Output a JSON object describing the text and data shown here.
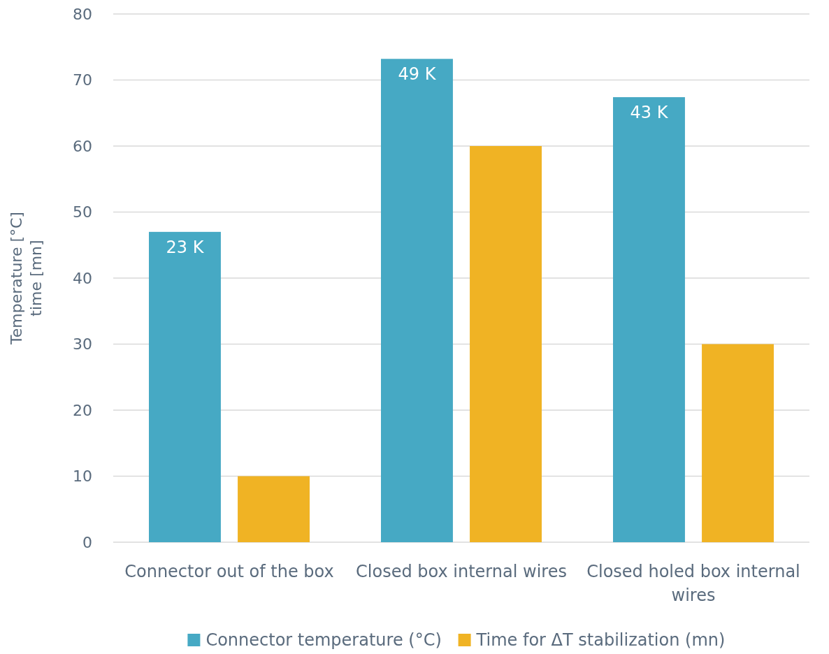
{
  "chart_data": {
    "type": "bar",
    "ylabel": "Temperature [°C]\ntime [mn]",
    "categories": [
      "Connector out of the box",
      "Closed box internal wires",
      "Closed holed box internal wires"
    ],
    "series": [
      {
        "name": "Connector temperature (°C)",
        "color": "#46a9c4",
        "values": [
          47,
          73.2,
          67.4
        ]
      },
      {
        "name": "Time for ΔT stabilization (mn)",
        "color": "#f0b324",
        "values": [
          10,
          60,
          30
        ]
      }
    ],
    "ylim": [
      0,
      80
    ],
    "yticks": [
      0,
      10,
      20,
      30,
      40,
      50,
      60,
      70,
      80
    ],
    "grid": "y",
    "legend": "bottom",
    "annotations": [
      "23 K",
      "49 K",
      "43 K"
    ]
  }
}
